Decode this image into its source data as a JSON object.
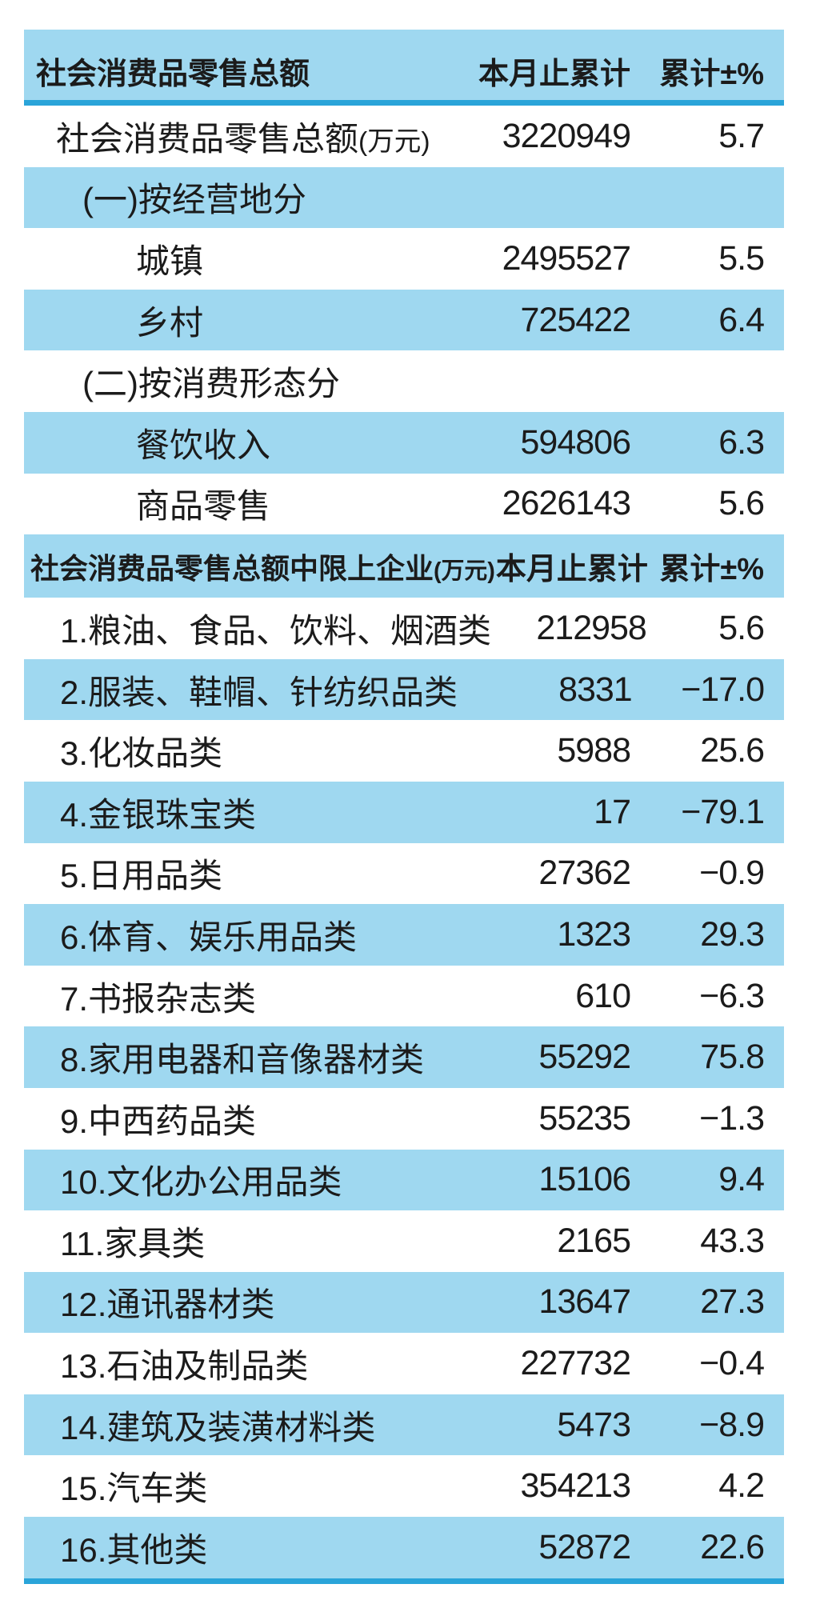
{
  "theme": {
    "band_color": "#9FD8F0",
    "accent_color": "#2AA4D9",
    "text_color": "#1B1B1B",
    "background": "#FFFFFF"
  },
  "columns": {
    "value_header": "本月止累计",
    "pct_header": "累计±%"
  },
  "table": {
    "section1": {
      "title": "社会消费品零售总额",
      "rows": [
        {
          "label": "社会消费品零售总额",
          "suffix": "(万元)",
          "value": "3220949",
          "pct": "5.7"
        },
        {
          "label": "(一)按经营地分",
          "value": "",
          "pct": ""
        },
        {
          "label": "城镇",
          "value": "2495527",
          "pct": "5.5"
        },
        {
          "label": "乡村",
          "value": "725422",
          "pct": "6.4"
        },
        {
          "label": "(二)按消费形态分",
          "value": "",
          "pct": ""
        },
        {
          "label": "餐饮收入",
          "value": "594806",
          "pct": "6.3"
        },
        {
          "label": "商品零售",
          "value": "2626143",
          "pct": "5.6"
        }
      ]
    },
    "section2": {
      "title": "社会消费品零售总额中限上企业",
      "title_suffix": "(万元)",
      "rows": [
        {
          "label": "1.粮油、食品、饮料、烟酒类",
          "value": "212958",
          "pct": "5.6"
        },
        {
          "label": "2.服装、鞋帽、针纺织品类",
          "value": "8331",
          "pct": "−17.0"
        },
        {
          "label": "3.化妆品类",
          "value": "5988",
          "pct": "25.6"
        },
        {
          "label": "4.金银珠宝类",
          "value": "17",
          "pct": "−79.1"
        },
        {
          "label": "5.日用品类",
          "value": "27362",
          "pct": "−0.9"
        },
        {
          "label": "6.体育、娱乐用品类",
          "value": "1323",
          "pct": "29.3"
        },
        {
          "label": "7.书报杂志类",
          "value": "610",
          "pct": "−6.3"
        },
        {
          "label": "8.家用电器和音像器材类",
          "value": "55292",
          "pct": "75.8"
        },
        {
          "label": "9.中西药品类",
          "value": "55235",
          "pct": "−1.3"
        },
        {
          "label": "10.文化办公用品类",
          "value": "15106",
          "pct": "9.4"
        },
        {
          "label": "11.家具类",
          "value": "2165",
          "pct": "43.3"
        },
        {
          "label": "12.通讯器材类",
          "value": "13647",
          "pct": "27.3"
        },
        {
          "label": "13.石油及制品类",
          "value": "227732",
          "pct": "−0.4"
        },
        {
          "label": "14.建筑及装潢材料类",
          "value": "5473",
          "pct": "−8.9"
        },
        {
          "label": "15.汽车类",
          "value": "354213",
          "pct": "4.2"
        },
        {
          "label": "16.其他类",
          "value": "52872",
          "pct": "22.6"
        }
      ]
    }
  },
  "chart_data": {
    "type": "table",
    "title": "社会消费品零售总额",
    "sections": [
      {
        "header": [
          "社会消费品零售总额",
          "本月止累计",
          "累计±%"
        ],
        "rows": [
          [
            "社会消费品零售总额(万元)",
            3220949,
            5.7
          ],
          [
            "(一)按经营地分",
            null,
            null
          ],
          [
            "城镇",
            2495527,
            5.5
          ],
          [
            "乡村",
            725422,
            6.4
          ],
          [
            "(二)按消费形态分",
            null,
            null
          ],
          [
            "餐饮收入",
            594806,
            6.3
          ],
          [
            "商品零售",
            2626143,
            5.6
          ]
        ]
      },
      {
        "header": [
          "社会消费品零售总额中限上企业(万元)",
          "本月止累计",
          "累计±%"
        ],
        "rows": [
          [
            "1.粮油、食品、饮料、烟酒类",
            212958,
            5.6
          ],
          [
            "2.服装、鞋帽、针纺织品类",
            8331,
            -17.0
          ],
          [
            "3.化妆品类",
            5988,
            25.6
          ],
          [
            "4.金银珠宝类",
            17,
            -79.1
          ],
          [
            "5.日用品类",
            27362,
            -0.9
          ],
          [
            "6.体育、娱乐用品类",
            1323,
            29.3
          ],
          [
            "7.书报杂志类",
            610,
            -6.3
          ],
          [
            "8.家用电器和音像器材类",
            55292,
            75.8
          ],
          [
            "9.中西药品类",
            55235,
            -1.3
          ],
          [
            "10.文化办公用品类",
            15106,
            9.4
          ],
          [
            "11.家具类",
            2165,
            43.3
          ],
          [
            "12.通讯器材类",
            13647,
            27.3
          ],
          [
            "13.石油及制品类",
            227732,
            -0.4
          ],
          [
            "14.建筑及装潢材料类",
            5473,
            -8.9
          ],
          [
            "15.汽车类",
            354213,
            4.2
          ],
          [
            "16.其他类",
            52872,
            22.6
          ]
        ]
      }
    ],
    "layout": {
      "striped": true,
      "stripe_color": "#9FD8F0",
      "rule_color": "#2AA4D9"
    }
  }
}
